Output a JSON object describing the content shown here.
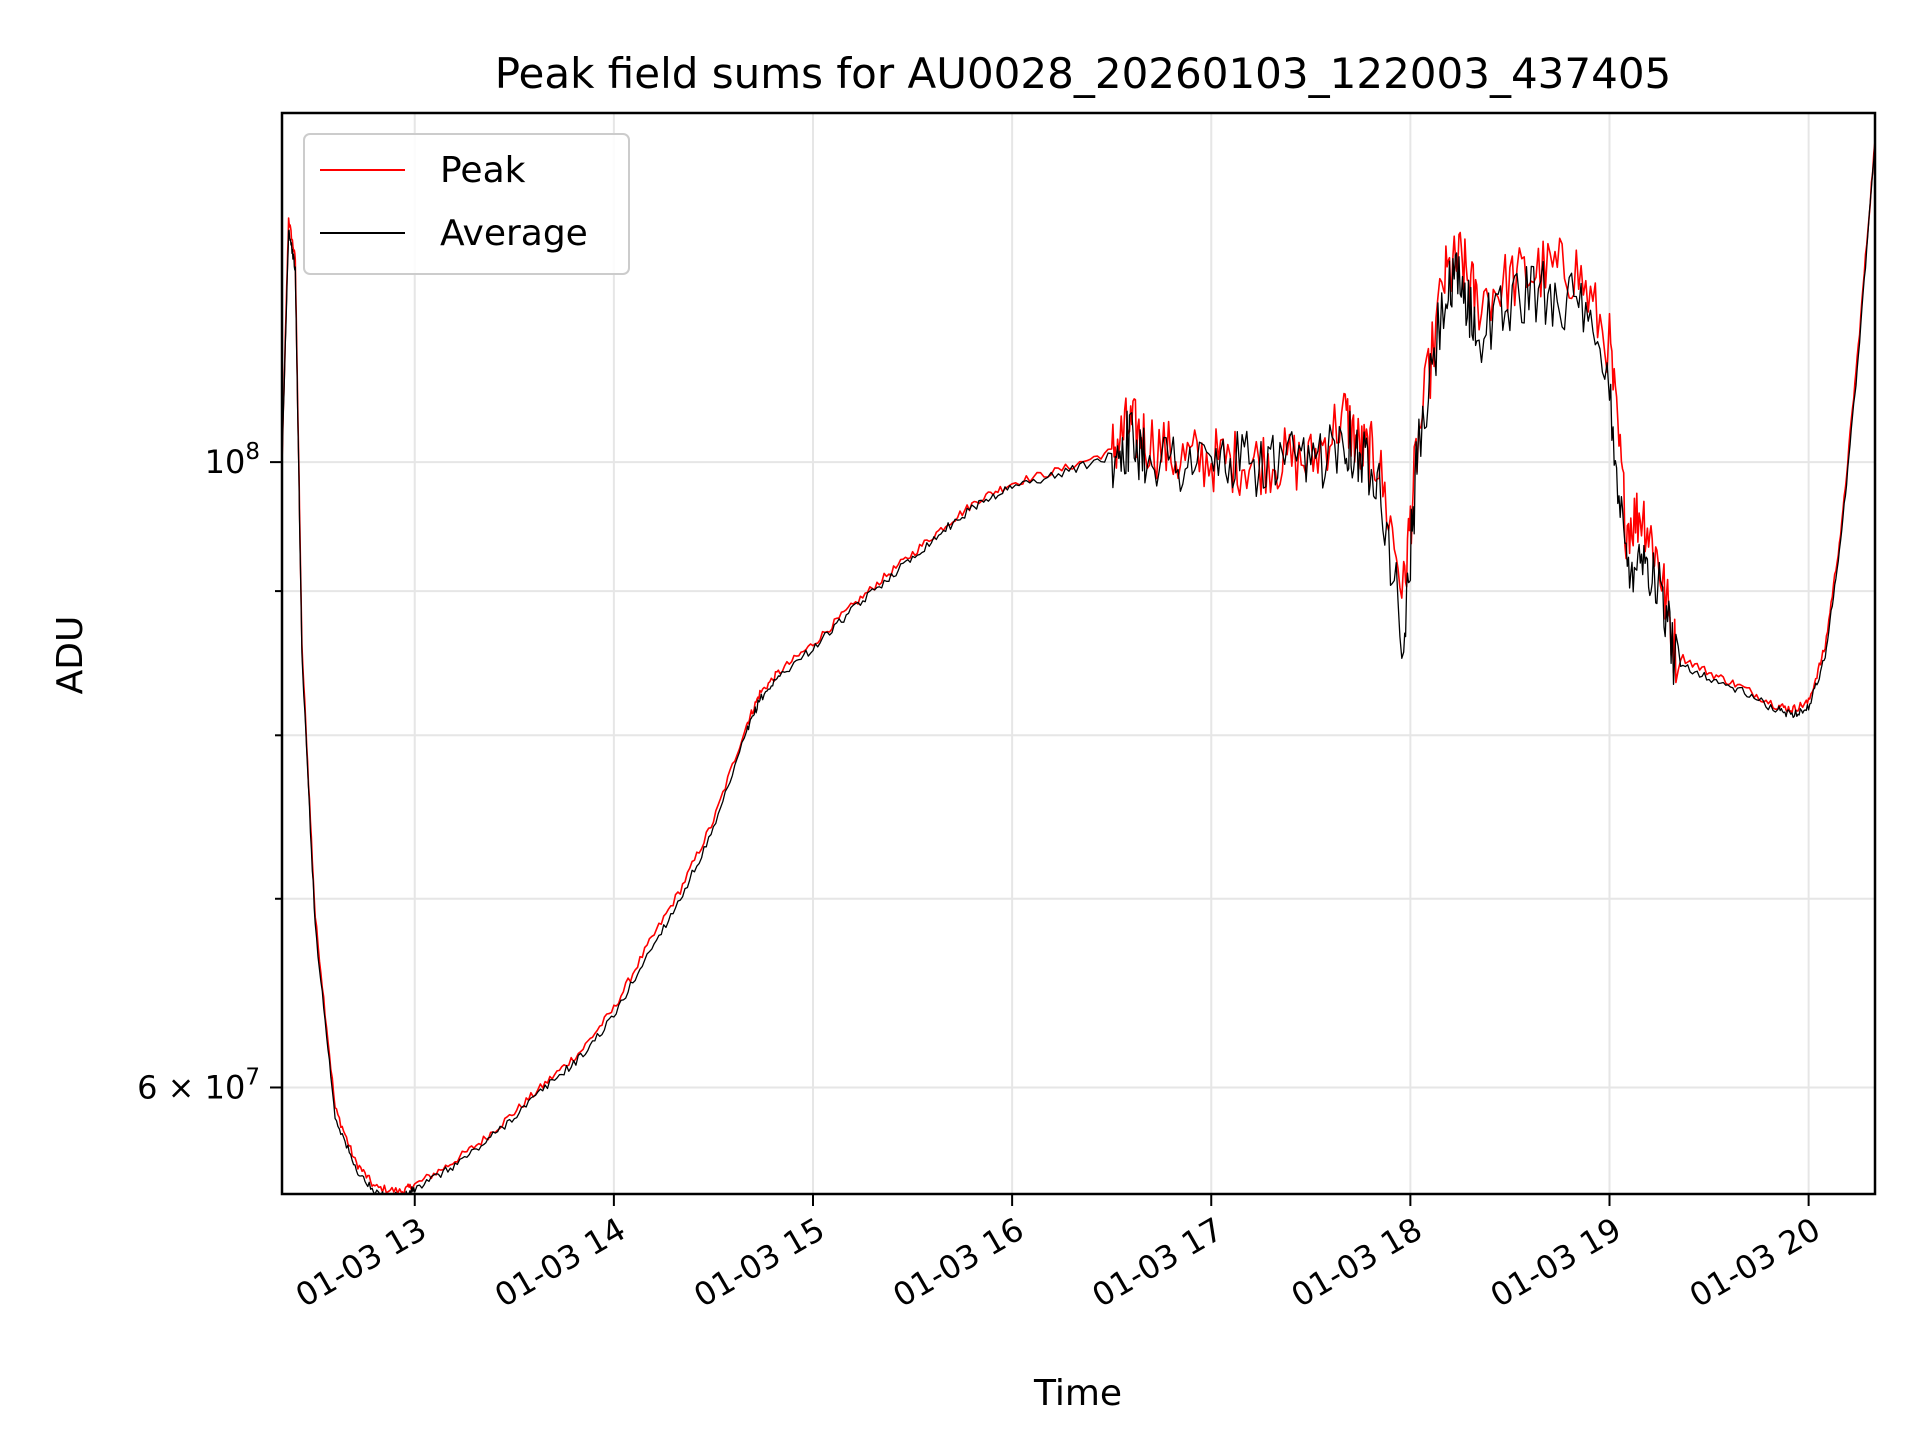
{
  "chart_data": {
    "type": "line",
    "title": "Peak field sums for AU0028_20260103_122003_437405",
    "xlabel": "Time",
    "ylabel": "ADU",
    "yscale": "log",
    "xlim": [
      "01-03 12:20",
      "01-03 20:20"
    ],
    "ylim": [
      55000000,
      133000000
    ],
    "grid": true,
    "legend": "top-left",
    "x_ticks": [
      "01-03 13",
      "01-03 14",
      "01-03 15",
      "01-03 16",
      "01-03 17",
      "01-03 18",
      "01-03 19",
      "01-03 20"
    ],
    "x_tick_hours": [
      13,
      14,
      15,
      16,
      17,
      18,
      19,
      20
    ],
    "y_major_ticks": [
      {
        "value": 100000000,
        "base": "10",
        "exp": "8"
      },
      {
        "value": 60000000,
        "base": "6 × 10",
        "exp": "7"
      }
    ],
    "y_minor_ticks": [
      70000000,
      80000000,
      90000000
    ],
    "x": [
      "12:20",
      "12:22",
      "12:24",
      "12:26",
      "12:30",
      "12:36",
      "12:42",
      "12:48",
      "12:56",
      "13:00",
      "13:10",
      "13:20",
      "13:30",
      "13:40",
      "13:50",
      "14:00",
      "14:10",
      "14:20",
      "14:30",
      "14:40",
      "14:44",
      "14:50",
      "15:00",
      "15:10",
      "15:20",
      "15:30",
      "15:40",
      "15:50",
      "16:00",
      "16:15",
      "16:30",
      "16:35",
      "16:40",
      "16:50",
      "17:00",
      "17:10",
      "17:20",
      "17:30",
      "17:40",
      "17:45",
      "17:50",
      "17:58",
      "18:02",
      "18:10",
      "18:15",
      "18:20",
      "18:30",
      "18:40",
      "18:50",
      "19:00",
      "19:05",
      "19:10",
      "19:15",
      "19:20",
      "19:30",
      "19:40",
      "19:50",
      "19:55",
      "20:00",
      "20:05",
      "20:10",
      "20:15",
      "20:20"
    ],
    "series": [
      {
        "name": "Peak",
        "color": "#ff0000",
        "values": [
          100000000,
          122000000,
          118000000,
          86000000,
          69000000,
          59000000,
          56500000,
          55300000,
          55100000,
          55400000,
          56300000,
          57400000,
          58800000,
          60300000,
          61800000,
          64000000,
          67300000,
          70500000,
          74600000,
          80700000,
          82800000,
          84300000,
          86200000,
          88500000,
          90700000,
          92800000,
          95000000,
          97000000,
          98300000,
          99400000,
          100900000,
          103000000,
          102000000,
          100300000,
          100200000,
          100000000,
          100200000,
          100000000,
          104000000,
          101000000,
          100300000,
          90000000,
          101000000,
          116000000,
          118000000,
          114000000,
          116000000,
          117000000,
          117000000,
          110000000,
          95000000,
          96000000,
          92000000,
          85500000,
          84200000,
          83200000,
          82000000,
          81700000,
          82200000,
          86000000,
          95000000,
          110000000,
          130000000
        ]
      },
      {
        "name": "Average",
        "color": "#000000",
        "values": [
          100000000,
          121000000,
          117000000,
          85500000,
          68500000,
          58600000,
          56200000,
          55000000,
          54900000,
          55200000,
          56100000,
          57200000,
          58600000,
          60100000,
          61500000,
          63600000,
          66800000,
          70000000,
          74000000,
          80200000,
          82400000,
          84000000,
          85900000,
          88200000,
          90400000,
          92500000,
          94700000,
          96700000,
          98000000,
          99100000,
          100500000,
          101800000,
          100800000,
          100000000,
          100000000,
          99800000,
          99900000,
          99600000,
          102500000,
          100200000,
          99700000,
          86000000,
          100000000,
          114000000,
          116000000,
          111000000,
          114000000,
          115000000,
          114000000,
          106000000,
          92000000,
          93000000,
          90000000,
          85000000,
          83800000,
          82900000,
          81700000,
          81400000,
          81800000,
          85300000,
          94500000,
          109000000,
          130000000
        ]
      }
    ]
  }
}
